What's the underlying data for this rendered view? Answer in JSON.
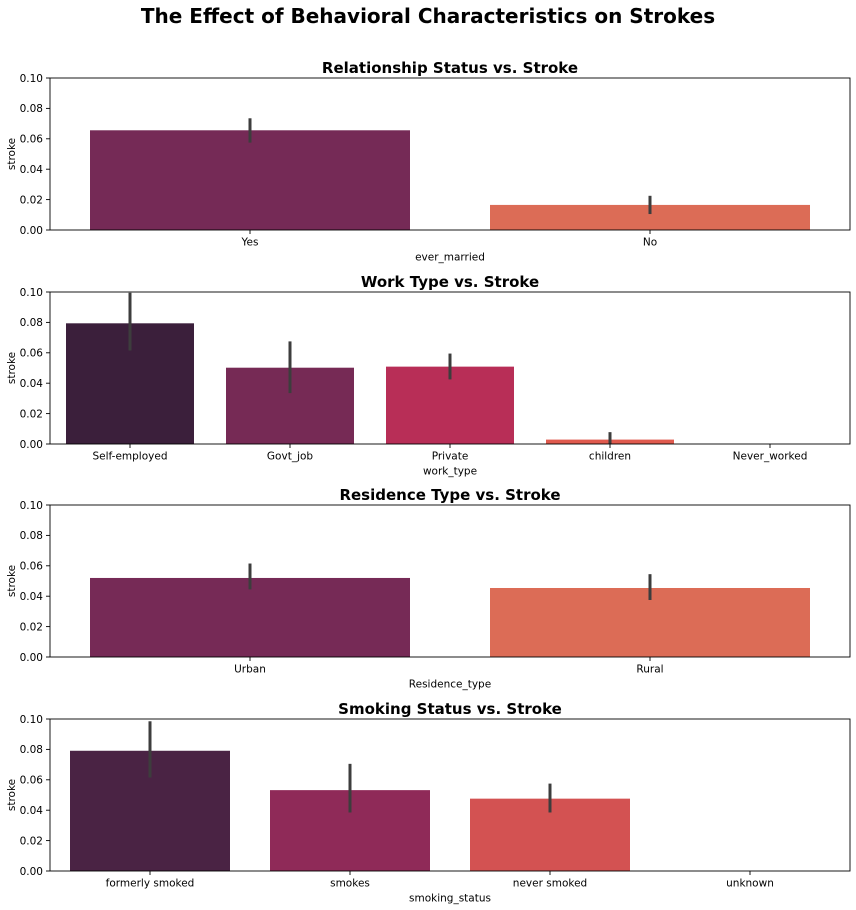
{
  "figure": {
    "title": "The Effect of Behavioral Characteristics on Strokes"
  },
  "chart_data": [
    {
      "type": "bar",
      "title": "Relationship Status vs. Stroke",
      "xlabel": "ever_married",
      "ylabel": "stroke",
      "ylim": [
        0,
        0.1
      ],
      "yticks": [
        "0.00",
        "0.02",
        "0.04",
        "0.06",
        "0.08",
        "0.10"
      ],
      "categories": [
        "Yes",
        "No"
      ],
      "values": [
        0.0656,
        0.0165
      ],
      "error_low": [
        0.0575,
        0.0105
      ],
      "error_high": [
        0.0735,
        0.0225
      ],
      "colors": [
        "#752a56",
        "#dc6c56"
      ]
    },
    {
      "type": "bar",
      "title": "Work Type vs. Stroke",
      "xlabel": "work_type",
      "ylabel": "stroke",
      "ylim": [
        0,
        0.1
      ],
      "yticks": [
        "0.00",
        "0.02",
        "0.04",
        "0.06",
        "0.08",
        "0.10"
      ],
      "categories": [
        "Self-employed",
        "Govt_job",
        "Private",
        "children",
        "Never_worked"
      ],
      "values": [
        0.0794,
        0.0502,
        0.0509,
        0.0029,
        0.0
      ],
      "error_low": [
        0.0615,
        0.0335,
        0.0425,
        0.0,
        0.0
      ],
      "error_high": [
        0.0995,
        0.0675,
        0.0595,
        0.0078,
        0.0
      ],
      "colors": [
        "#3b1f3b",
        "#762a55",
        "#b82e57",
        "#e05a4e",
        "#ee8a6a"
      ]
    },
    {
      "type": "bar",
      "title": "Residence Type vs. Stroke",
      "xlabel": "Residence_type",
      "ylabel": "stroke",
      "ylim": [
        0,
        0.1
      ],
      "yticks": [
        "0.00",
        "0.02",
        "0.04",
        "0.06",
        "0.08",
        "0.10"
      ],
      "categories": [
        "Urban",
        "Rural"
      ],
      "values": [
        0.052,
        0.0454
      ],
      "error_low": [
        0.0445,
        0.0375
      ],
      "error_high": [
        0.0615,
        0.0545
      ],
      "colors": [
        "#762a56",
        "#dc6c56"
      ]
    },
    {
      "type": "bar",
      "title": "Smoking Status vs. Stroke",
      "xlabel": "smoking_status",
      "ylabel": "stroke",
      "ylim": [
        0,
        0.1
      ],
      "yticks": [
        "0.00",
        "0.02",
        "0.04",
        "0.06",
        "0.08",
        "0.10"
      ],
      "categories": [
        "formerly smoked",
        "smokes",
        "never smoked",
        "unknown"
      ],
      "values": [
        0.0791,
        0.0532,
        0.0476,
        0.0
      ],
      "error_low": [
        0.0615,
        0.0385,
        0.0385,
        0.0
      ],
      "error_high": [
        0.0985,
        0.0705,
        0.0575,
        0.0
      ],
      "colors": [
        "#4a2344",
        "#8f2a58",
        "#d35252",
        "#ee8a6a"
      ]
    }
  ]
}
